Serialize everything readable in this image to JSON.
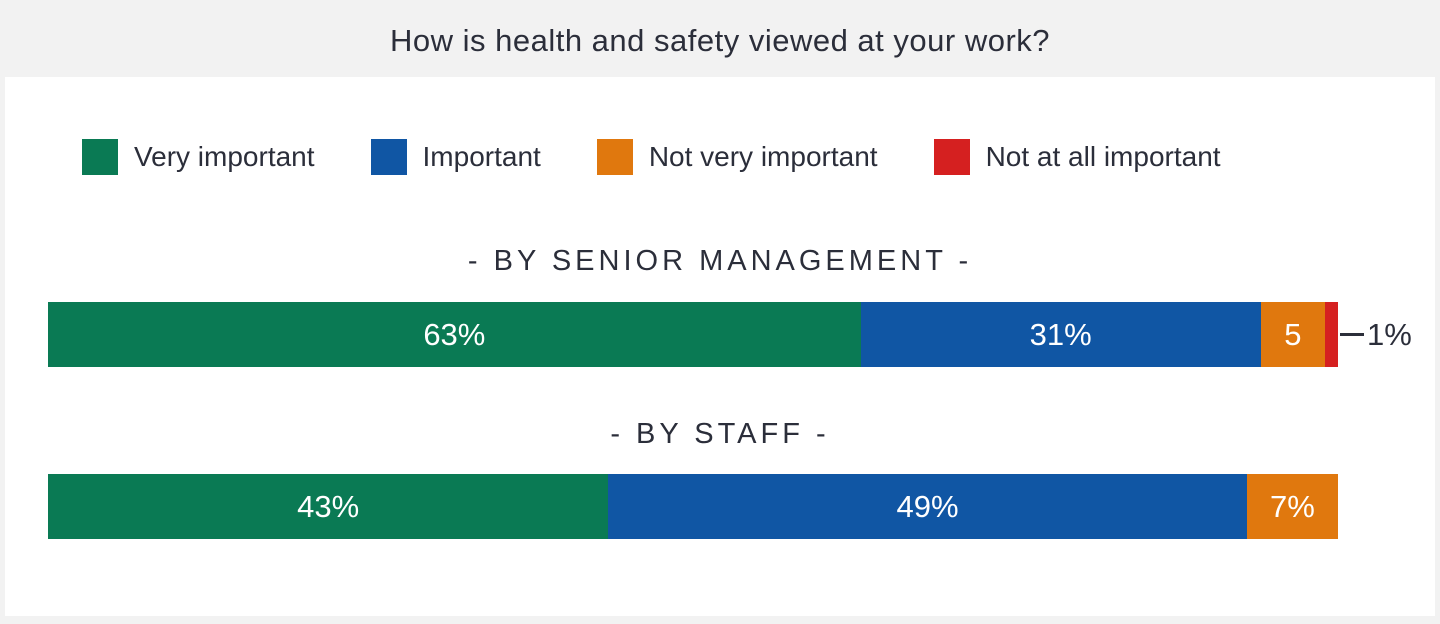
{
  "title": "How is health and safety viewed at your work?",
  "colors": {
    "very_important": "#0A7A54",
    "important": "#1056A4",
    "not_very_important": "#E0780E",
    "not_at_all_important": "#D52020",
    "text_dark": "#2B2E3A",
    "background": "#F2F2F2",
    "panel": "#FFFFFF",
    "bar_label": "#FFFFFF"
  },
  "legend": {
    "items": [
      {
        "label": "Very important",
        "color": "very_important"
      },
      {
        "label": "Important",
        "color": "important"
      },
      {
        "label": "Not very important",
        "color": "not_very_important"
      },
      {
        "label": "Not at all important",
        "color": "not_at_all_important"
      }
    ]
  },
  "chart_data": {
    "type": "bar",
    "orientation": "horizontal-stacked",
    "unit": "%",
    "title": "How is health and safety viewed at your work?",
    "legend_position": "top",
    "categories": [
      "Very important",
      "Important",
      "Not very important",
      "Not at all important"
    ],
    "rows": [
      {
        "heading": "- BY SENIOR MANAGEMENT -",
        "segments": [
          {
            "category": "Very important",
            "color": "very_important",
            "value": 63,
            "label": "63%",
            "label_position": "inside"
          },
          {
            "category": "Important",
            "color": "important",
            "value": 31,
            "label": "31%",
            "label_position": "inside"
          },
          {
            "category": "Not very important",
            "color": "not_very_important",
            "value": 5,
            "label": "5",
            "label_position": "inside"
          },
          {
            "category": "Not at all important",
            "color": "not_at_all_important",
            "value": 1,
            "label": "1%",
            "label_position": "outside"
          }
        ]
      },
      {
        "heading": "- BY STAFF -",
        "segments": [
          {
            "category": "Very important",
            "color": "very_important",
            "value": 43,
            "label": "43%",
            "label_position": "inside"
          },
          {
            "category": "Important",
            "color": "important",
            "value": 49,
            "label": "49%",
            "label_position": "inside"
          },
          {
            "category": "Not very important",
            "color": "not_very_important",
            "value": 7,
            "label": "7%",
            "label_position": "inside"
          }
        ]
      }
    ]
  }
}
